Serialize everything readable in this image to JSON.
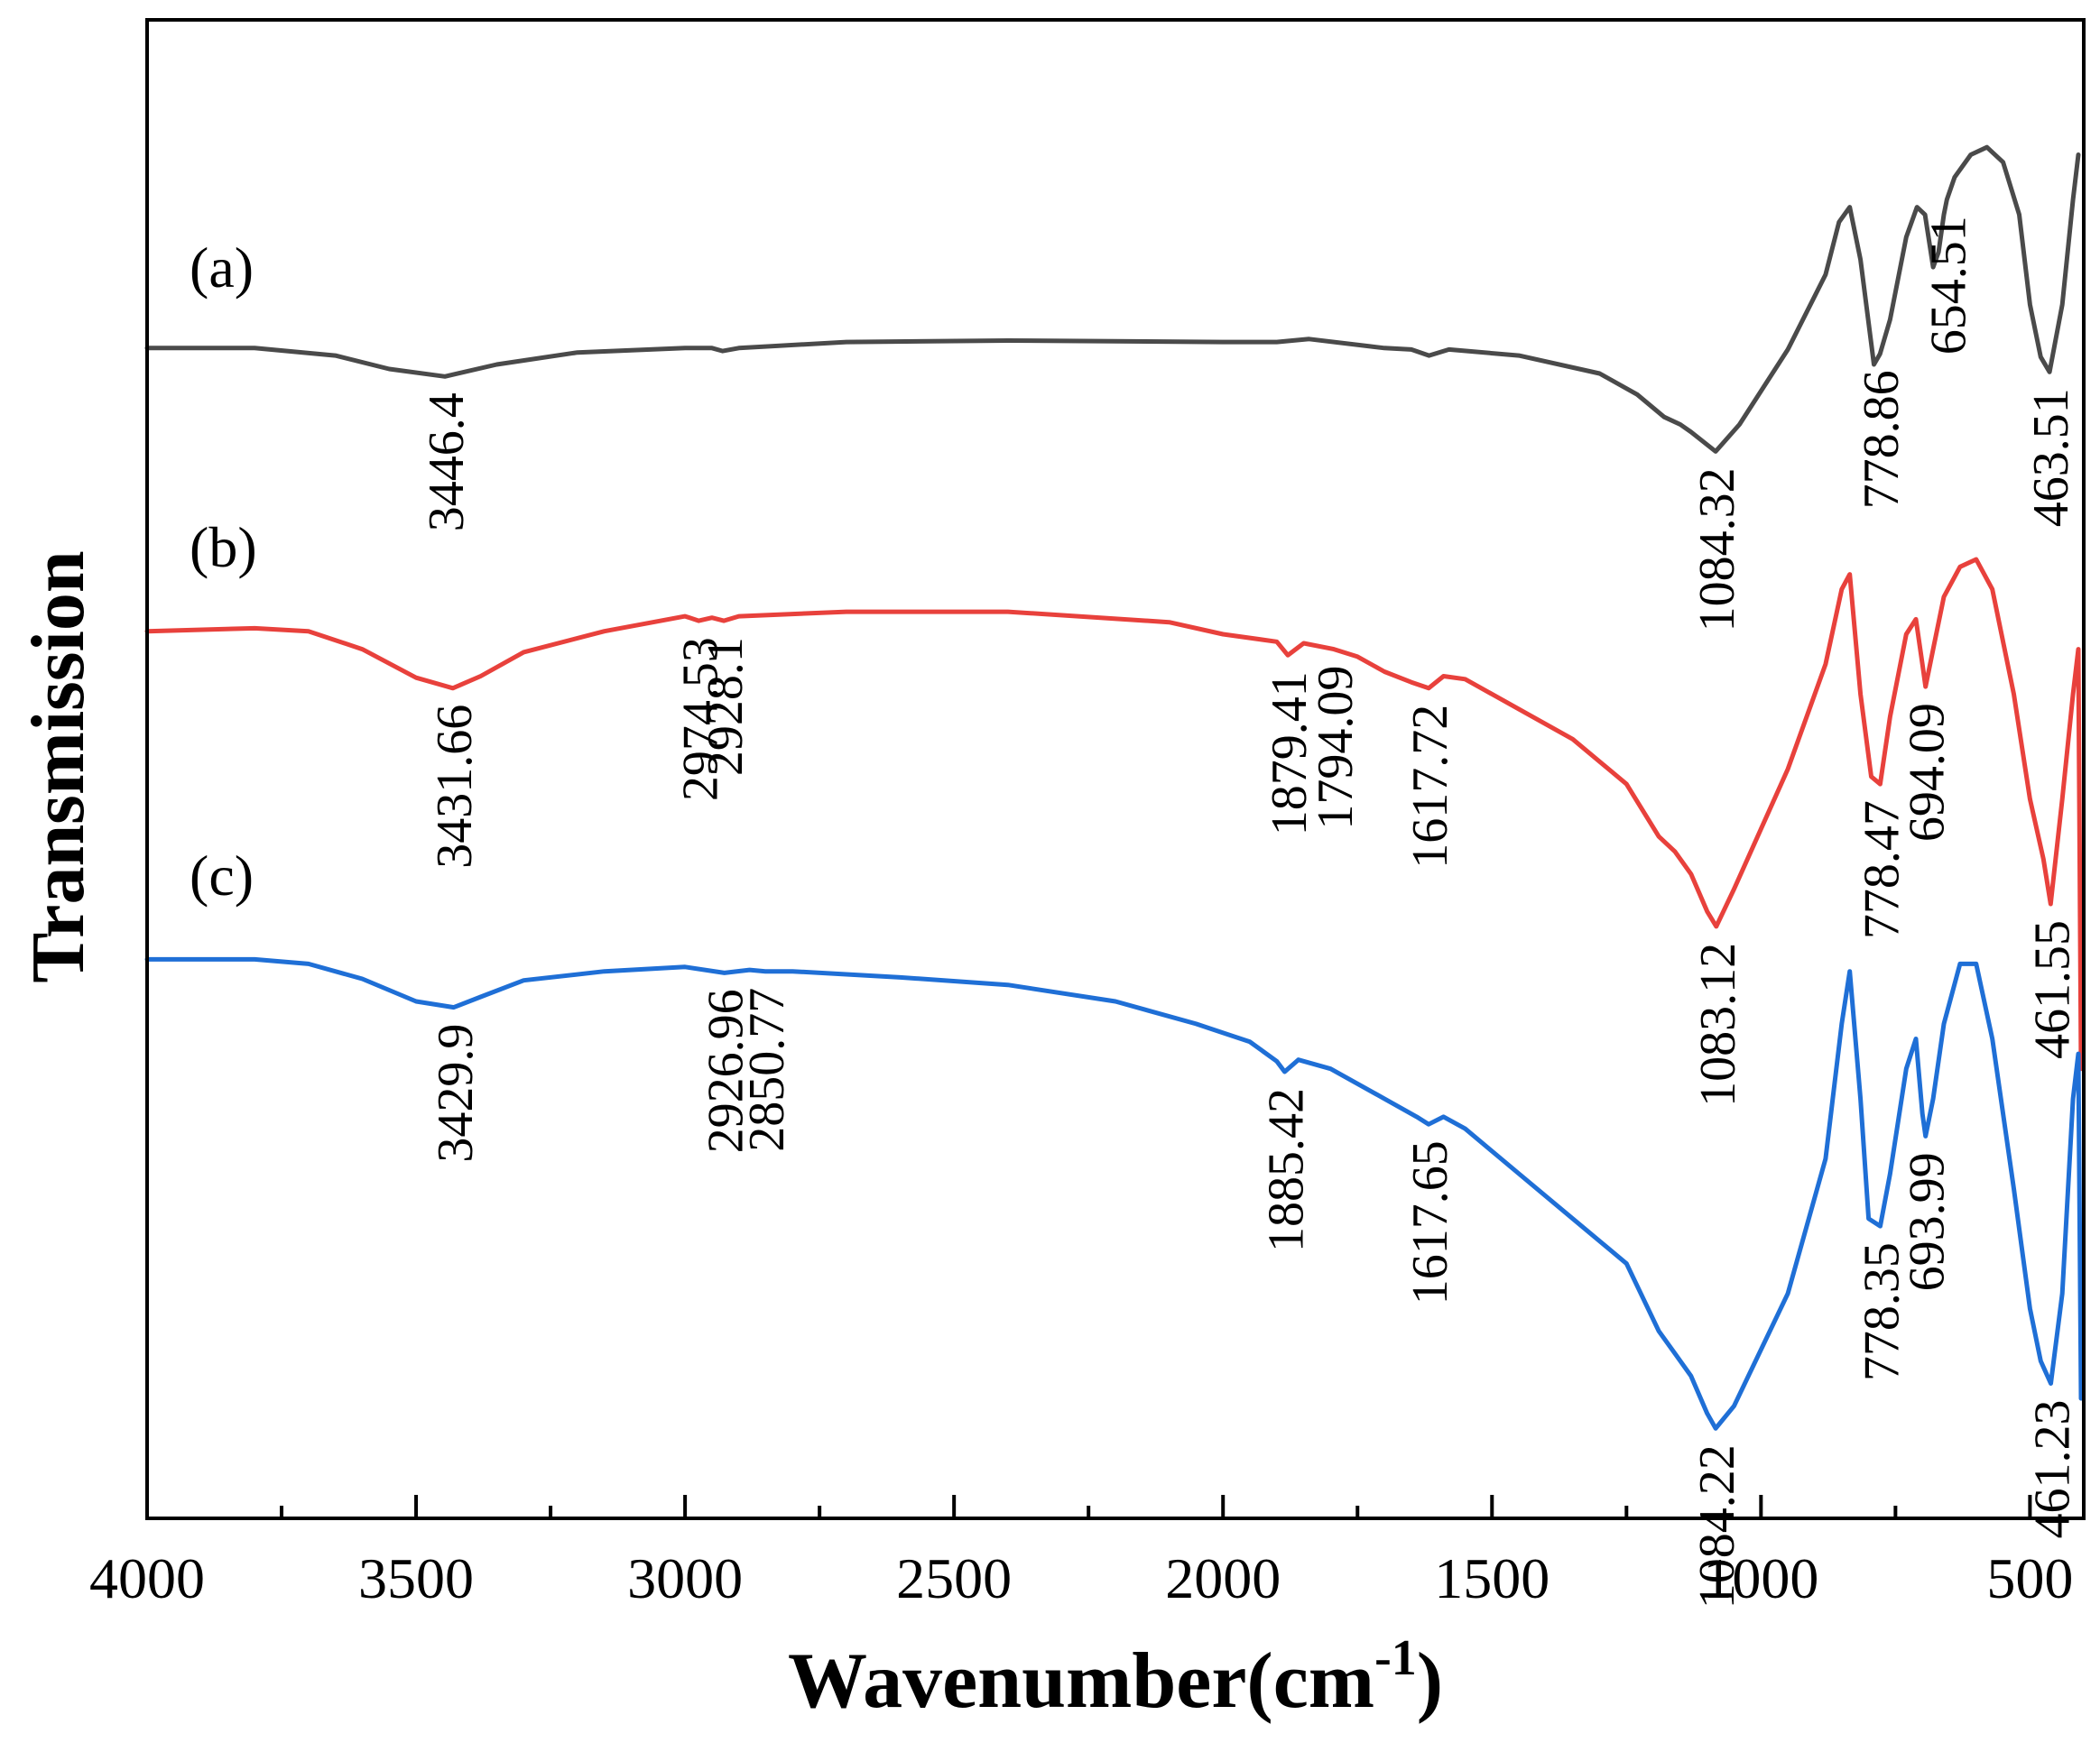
{
  "chart_data": {
    "type": "line",
    "title": "",
    "xlabel": "Wavenumber(cm",
    "xlabel_sup": "-1",
    "xlabel_end": ")",
    "ylabel": "Transmission",
    "xlim": [
      4000,
      400
    ],
    "x_reversed": true,
    "ylim": [
      0,
      100
    ],
    "y_ticks_shown": false,
    "x_major_ticks": [
      4000,
      3500,
      3000,
      2500,
      2000,
      1500,
      1000,
      500
    ],
    "x_minor_ticks": [
      3750,
      3250,
      2750,
      2250,
      1750,
      1250,
      750
    ],
    "x_tick_labels": [
      "4000",
      "3500",
      "3000",
      "2500",
      "2000",
      "1500",
      "1000",
      "500"
    ],
    "series": [
      {
        "name": "(a)",
        "color": "#4a4a4a",
        "points": [
          [
            4000,
            78.1
          ],
          [
            3800,
            78.1
          ],
          [
            3650,
            77.6
          ],
          [
            3550,
            76.7
          ],
          [
            3446.4,
            76.2
          ],
          [
            3350,
            77.0
          ],
          [
            3200,
            77.8
          ],
          [
            3000,
            78.1
          ],
          [
            2950,
            78.1
          ],
          [
            2930,
            77.9
          ],
          [
            2900,
            78.1
          ],
          [
            2700,
            78.5
          ],
          [
            2400,
            78.6
          ],
          [
            2000,
            78.5
          ],
          [
            1900,
            78.5
          ],
          [
            1840,
            78.7
          ],
          [
            1700,
            78.1
          ],
          [
            1650,
            78.0
          ],
          [
            1617,
            77.6
          ],
          [
            1580,
            78.0
          ],
          [
            1450,
            77.6
          ],
          [
            1300,
            76.4
          ],
          [
            1230,
            75.0
          ],
          [
            1180,
            73.5
          ],
          [
            1150,
            73.0
          ],
          [
            1130,
            72.5
          ],
          [
            1084.32,
            71.2
          ],
          [
            1040,
            73.0
          ],
          [
            950,
            78.0
          ],
          [
            880,
            83.0
          ],
          [
            855,
            86.5
          ],
          [
            835,
            87.5
          ],
          [
            815,
            84.0
          ],
          [
            790,
            77.0
          ],
          [
            778.86,
            77.7
          ],
          [
            760,
            80.0
          ],
          [
            730,
            85.5
          ],
          [
            710,
            87.5
          ],
          [
            695,
            87.0
          ],
          [
            680,
            83.5
          ],
          [
            670,
            84.5
          ],
          [
            660,
            87.0
          ],
          [
            654.51,
            88.0
          ],
          [
            640,
            89.5
          ],
          [
            610,
            91.0
          ],
          [
            580,
            91.5
          ],
          [
            550,
            90.5
          ],
          [
            520,
            87.0
          ],
          [
            500,
            81.0
          ],
          [
            480,
            77.5
          ],
          [
            463.51,
            76.5
          ],
          [
            440,
            81.0
          ],
          [
            420,
            88.0
          ],
          [
            410,
            91.0
          ]
        ]
      },
      {
        "name": "(b)",
        "color": "#e8413c",
        "points": [
          [
            4000,
            59.2
          ],
          [
            3800,
            59.4
          ],
          [
            3700,
            59.2
          ],
          [
            3600,
            58.0
          ],
          [
            3500,
            56.1
          ],
          [
            3431.66,
            55.4
          ],
          [
            3380,
            56.2
          ],
          [
            3300,
            57.8
          ],
          [
            3150,
            59.2
          ],
          [
            3000,
            60.2
          ],
          [
            2974.53,
            59.9
          ],
          [
            2950,
            60.1
          ],
          [
            2928.1,
            59.9
          ],
          [
            2900,
            60.2
          ],
          [
            2700,
            60.5
          ],
          [
            2400,
            60.5
          ],
          [
            2100,
            59.8
          ],
          [
            2000,
            59.0
          ],
          [
            1900,
            58.5
          ],
          [
            1879.41,
            57.6
          ],
          [
            1850,
            58.4
          ],
          [
            1794.09,
            58.0
          ],
          [
            1750,
            57.5
          ],
          [
            1700,
            56.5
          ],
          [
            1650,
            55.8
          ],
          [
            1617.72,
            55.4
          ],
          [
            1590,
            56.2
          ],
          [
            1550,
            56.0
          ],
          [
            1450,
            54.0
          ],
          [
            1350,
            52.0
          ],
          [
            1250,
            49.0
          ],
          [
            1190,
            45.5
          ],
          [
            1160,
            44.5
          ],
          [
            1130,
            43.0
          ],
          [
            1100,
            40.5
          ],
          [
            1083.12,
            39.5
          ],
          [
            1050,
            42.0
          ],
          [
            950,
            50.0
          ],
          [
            880,
            57.0
          ],
          [
            850,
            62.0
          ],
          [
            835,
            63.0
          ],
          [
            815,
            55.0
          ],
          [
            795,
            49.5
          ],
          [
            778.47,
            49.0
          ],
          [
            760,
            53.5
          ],
          [
            730,
            59.0
          ],
          [
            712,
            60.0
          ],
          [
            700,
            57.0
          ],
          [
            694.09,
            55.5
          ],
          [
            680,
            58.0
          ],
          [
            660,
            61.5
          ],
          [
            630,
            63.5
          ],
          [
            600,
            64.0
          ],
          [
            570,
            62.0
          ],
          [
            530,
            55.0
          ],
          [
            500,
            48.0
          ],
          [
            475,
            44.0
          ],
          [
            461.55,
            41.0
          ],
          [
            440,
            48.0
          ],
          [
            420,
            55.0
          ],
          [
            410,
            58.0
          ],
          [
            405,
            30.0
          ]
        ]
      },
      {
        "name": "(c)",
        "color": "#1f6fd6",
        "points": [
          [
            4000,
            37.3
          ],
          [
            3800,
            37.3
          ],
          [
            3700,
            37.0
          ],
          [
            3600,
            36.0
          ],
          [
            3500,
            34.5
          ],
          [
            3429.9,
            34.1
          ],
          [
            3380,
            34.8
          ],
          [
            3300,
            35.9
          ],
          [
            3150,
            36.5
          ],
          [
            3000,
            36.8
          ],
          [
            2926.96,
            36.4
          ],
          [
            2880,
            36.6
          ],
          [
            2850.77,
            36.5
          ],
          [
            2800,
            36.5
          ],
          [
            2600,
            36.1
          ],
          [
            2400,
            35.6
          ],
          [
            2200,
            34.5
          ],
          [
            2050,
            33.0
          ],
          [
            1950,
            31.8
          ],
          [
            1900,
            30.5
          ],
          [
            1885.42,
            29.8
          ],
          [
            1860,
            30.6
          ],
          [
            1800,
            30.0
          ],
          [
            1700,
            28.0
          ],
          [
            1640,
            26.8
          ],
          [
            1617.65,
            26.3
          ],
          [
            1590,
            26.8
          ],
          [
            1550,
            26.0
          ],
          [
            1450,
            23.0
          ],
          [
            1350,
            20.0
          ],
          [
            1250,
            17.0
          ],
          [
            1190,
            12.5
          ],
          [
            1160,
            11.0
          ],
          [
            1130,
            9.5
          ],
          [
            1100,
            7.0
          ],
          [
            1084.22,
            6.0
          ],
          [
            1050,
            7.5
          ],
          [
            950,
            15.0
          ],
          [
            880,
            24.0
          ],
          [
            850,
            33.0
          ],
          [
            835,
            36.5
          ],
          [
            815,
            28.0
          ],
          [
            800,
            20.0
          ],
          [
            778.35,
            19.5
          ],
          [
            760,
            23.0
          ],
          [
            730,
            30.0
          ],
          [
            712,
            32.0
          ],
          [
            700,
            27.0
          ],
          [
            693.99,
            25.5
          ],
          [
            680,
            28.0
          ],
          [
            660,
            33.0
          ],
          [
            630,
            37.0
          ],
          [
            600,
            37.0
          ],
          [
            570,
            32.0
          ],
          [
            530,
            22.0
          ],
          [
            500,
            14.0
          ],
          [
            480,
            10.5
          ],
          [
            461.23,
            9.0
          ],
          [
            440,
            15.0
          ],
          [
            420,
            28.0
          ],
          [
            410,
            31.0
          ],
          [
            405,
            8.0
          ]
        ]
      }
    ],
    "annotations": [
      {
        "series": "(a)",
        "wavenumber": 3446.4,
        "label": "3446.4"
      },
      {
        "series": "(a)",
        "wavenumber": 1084.32,
        "label": "1084.32"
      },
      {
        "series": "(a)",
        "wavenumber": 778.86,
        "label": "778.86"
      },
      {
        "series": "(a)",
        "wavenumber": 654.51,
        "label": "654.51"
      },
      {
        "series": "(a)",
        "wavenumber": 463.51,
        "label": "463.51"
      },
      {
        "series": "(b)",
        "wavenumber": 3431.66,
        "label": "3431.66"
      },
      {
        "series": "(b)",
        "wavenumber": 2974.53,
        "label": "2974.53"
      },
      {
        "series": "(b)",
        "wavenumber": 2928.1,
        "label": "2928.1"
      },
      {
        "series": "(b)",
        "wavenumber": 1879.41,
        "label": "1879.41"
      },
      {
        "series": "(b)",
        "wavenumber": 1794.09,
        "label": "1794.09"
      },
      {
        "series": "(b)",
        "wavenumber": 1617.72,
        "label": "1617.72"
      },
      {
        "series": "(b)",
        "wavenumber": 1083.12,
        "label": "1083.12"
      },
      {
        "series": "(b)",
        "wavenumber": 778.47,
        "label": "778.47"
      },
      {
        "series": "(b)",
        "wavenumber": 694.09,
        "label": "694.09"
      },
      {
        "series": "(b)",
        "wavenumber": 461.55,
        "label": "461.55"
      },
      {
        "series": "(c)",
        "wavenumber": 3429.9,
        "label": "3429.9"
      },
      {
        "series": "(c)",
        "wavenumber": 2926.96,
        "label": "2926.96"
      },
      {
        "series": "(c)",
        "wavenumber": 2850.77,
        "label": "2850.77"
      },
      {
        "series": "(c)",
        "wavenumber": 1885.42,
        "label": "1885.42"
      },
      {
        "series": "(c)",
        "wavenumber": 1617.65,
        "label": "1617.65"
      },
      {
        "series": "(c)",
        "wavenumber": 1084.22,
        "label": "1084.22"
      },
      {
        "series": "(c)",
        "wavenumber": 778.35,
        "label": "778.35"
      },
      {
        "series": "(c)",
        "wavenumber": 693.99,
        "label": "693.99"
      },
      {
        "series": "(c)",
        "wavenumber": 461.23,
        "label": "461.23"
      }
    ]
  }
}
